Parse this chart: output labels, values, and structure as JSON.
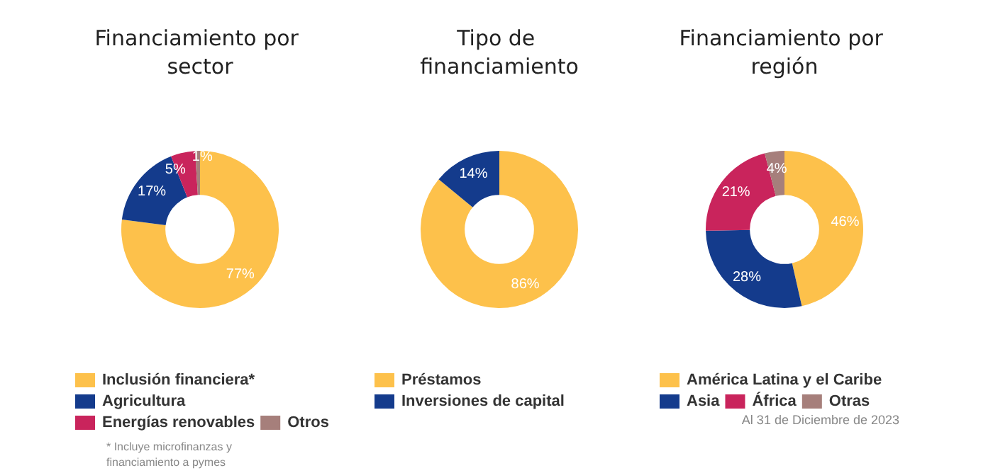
{
  "chart_data": [
    {
      "type": "donut",
      "title": "Financiamiento por sector",
      "categories": [
        "Inclusión financiera*",
        "Agricultura",
        "Energías renovables",
        "Otros"
      ],
      "values": [
        77,
        17,
        5,
        1
      ],
      "value_labels": [
        "77%",
        "17%",
        "5%",
        "1%"
      ],
      "colors": [
        "#fdc14b",
        "#143b8c",
        "#c9245c",
        "#a67f7b"
      ],
      "legend": "bottom",
      "annotations": [
        "* Incluye microfinanzas y financiamiento a pymes"
      ]
    },
    {
      "type": "donut",
      "title": "Tipo de financiamiento",
      "categories": [
        "Préstamos",
        "Inversiones de capital"
      ],
      "values": [
        86,
        14
      ],
      "value_labels": [
        "86%",
        "14%"
      ],
      "colors": [
        "#fdc14b",
        "#143b8c"
      ],
      "legend": "bottom"
    },
    {
      "type": "donut",
      "title": "Financiamiento por región",
      "categories": [
        "América Latina y el Caribe",
        "Asia",
        "África",
        "Otras"
      ],
      "values": [
        46,
        28,
        21,
        4
      ],
      "value_labels": [
        "46%",
        "28%",
        "21%",
        "4%"
      ],
      "colors": [
        "#fdc14b",
        "#143b8c",
        "#c9245c",
        "#a67f7b"
      ],
      "legend": "bottom",
      "annotations": [
        "Al 31 de Diciembre de 2023"
      ]
    }
  ]
}
